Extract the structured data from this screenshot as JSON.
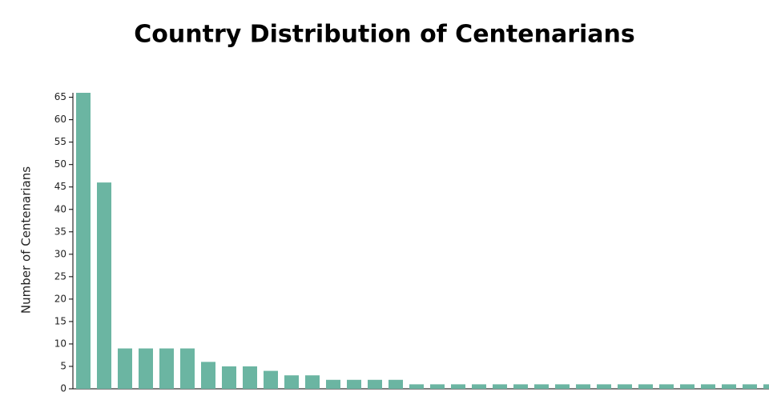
{
  "chart_data": {
    "type": "bar",
    "title": "Country Distribution of Centenarians",
    "y_label": "Number of Centenarians",
    "categories": [
      null,
      null,
      null,
      null,
      null,
      null,
      null,
      null,
      null,
      null,
      null,
      null,
      null,
      null,
      null,
      null,
      null,
      null,
      null,
      null,
      null,
      null,
      null,
      null,
      null,
      null,
      null,
      null,
      null,
      null,
      null,
      null,
      null,
      null
    ],
    "values": [
      66,
      46,
      9,
      9,
      9,
      9,
      6,
      5,
      5,
      4,
      3,
      3,
      2,
      2,
      2,
      2,
      1,
      1,
      1,
      1,
      1,
      1,
      1,
      1,
      1,
      1,
      1,
      1,
      1,
      1,
      1,
      1,
      1,
      1
    ],
    "color": "#6bb5a2",
    "ylim": [
      0,
      66
    ],
    "yticks": [
      0,
      5,
      10,
      15,
      20,
      25,
      30,
      35,
      40,
      45,
      50,
      55,
      60,
      65
    ],
    "grid": false
  }
}
